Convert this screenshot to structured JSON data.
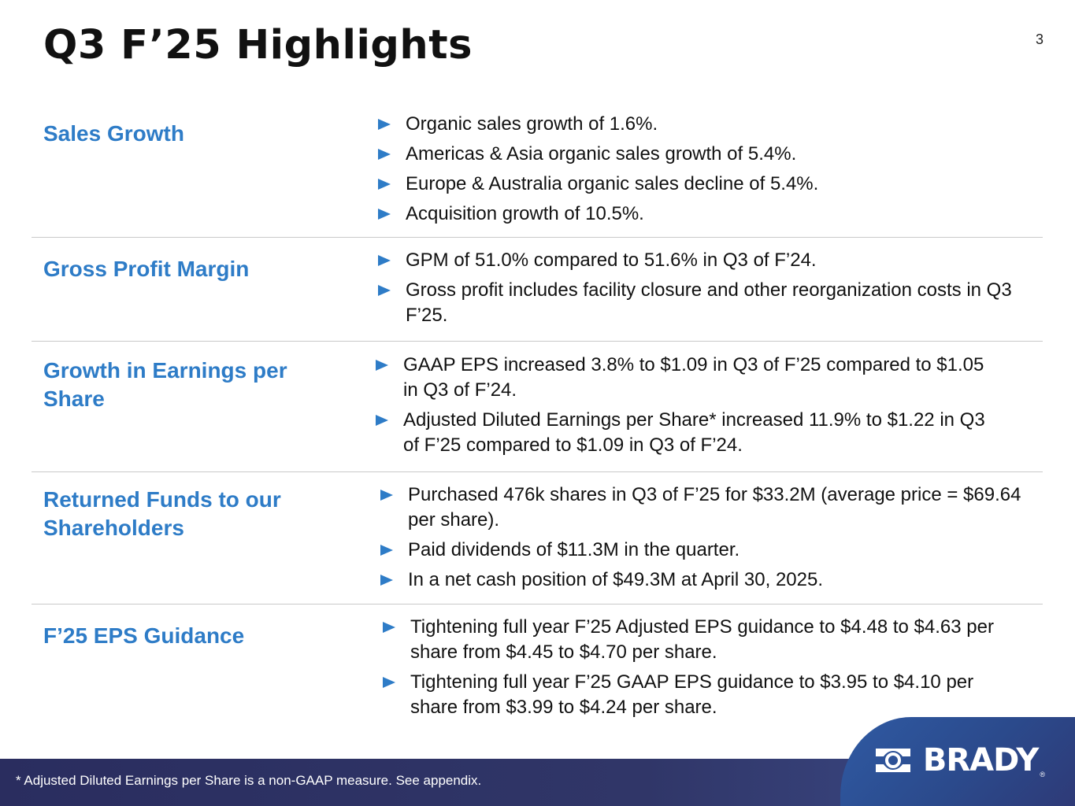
{
  "slide": {
    "title": "Q3 F’25 Highlights",
    "page_number": "3"
  },
  "sections": [
    {
      "heading": "Sales Growth",
      "bullets": [
        "Organic sales growth of 1.6%.",
        "Americas & Asia organic sales growth of 5.4%.",
        "Europe & Australia organic sales decline of 5.4%.",
        "Acquisition growth of 10.5%."
      ]
    },
    {
      "heading": "Gross Profit Margin",
      "bullets": [
        "GPM of 51.0% compared to 51.6% in Q3 of F’24.",
        "Gross profit includes facility closure and other reorganization costs in Q3 F’25."
      ]
    },
    {
      "heading": "Growth in Earnings per Share",
      "bullets": [
        "GAAP EPS increased 3.8% to $1.09 in Q3 of F’25 compared to $1.05 in Q3 of F’24.",
        "Adjusted Diluted Earnings per Share* increased 11.9% to $1.22 in Q3 of F’25 compared to $1.09 in Q3 of F’24."
      ]
    },
    {
      "heading": "Returned Funds to our Shareholders",
      "bullets": [
        "Purchased 476k shares in Q3 of F’25 for $33.2M (average price = $69.64 per share).",
        "Paid dividends of $11.3M in the quarter.",
        "In a net cash position of $49.3M at April 30, 2025."
      ]
    },
    {
      "heading": "F’25 EPS Guidance",
      "bullets": [
        "Tightening full year F’25 Adjusted EPS guidance to $4.48 to $4.63 per share from $4.45 to $4.70 per share.",
        "Tightening full year F’25 GAAP EPS guidance to $3.95 to $4.10 per share from $3.99 to $4.24 per share."
      ]
    }
  ],
  "footer": {
    "note": "* Adjusted Diluted Earnings per Share is a non-GAAP measure.  See appendix.",
    "logo_text": "BRADY",
    "logo_reg": "®"
  },
  "colors": {
    "accent": "#2e7cc7",
    "footer": "#2a2d5f",
    "logo_tab": "#2f5aa3"
  },
  "icons": {
    "bullet": "triangle-bullet-icon",
    "logo": "brady-logo-icon"
  }
}
